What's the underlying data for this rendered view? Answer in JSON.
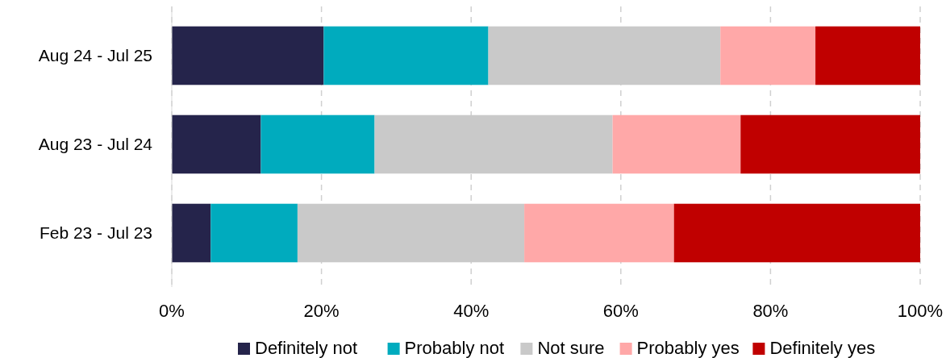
{
  "chart_data": {
    "type": "bar",
    "orientation": "horizontal",
    "stacked": true,
    "categories": [
      "Aug 24 - Jul 25",
      "Aug 23 - Jul 24",
      "Feb 23 - Jul 23"
    ],
    "series": [
      {
        "name": "Definitely not",
        "color": "#25244b",
        "values": [
          20.3,
          11.9,
          5.2
        ]
      },
      {
        "name": "Probably not",
        "color": "#00abbe",
        "values": [
          22.0,
          15.2,
          11.6
        ]
      },
      {
        "name": "Not sure",
        "color": "#c9c9c9",
        "values": [
          31.0,
          31.8,
          30.3
        ]
      },
      {
        "name": "Probably yes",
        "color": "#ffa8a8",
        "values": [
          12.7,
          17.1,
          20.0
        ]
      },
      {
        "name": "Definitely yes",
        "color": "#c00000",
        "values": [
          14.0,
          24.0,
          32.9
        ]
      }
    ],
    "xlim": [
      0,
      100
    ],
    "xticks": [
      {
        "value": 0,
        "label": "0%"
      },
      {
        "value": 20,
        "label": "20%"
      },
      {
        "value": 40,
        "label": "40%"
      },
      {
        "value": 60,
        "label": "60%"
      },
      {
        "value": 80,
        "label": "80%"
      },
      {
        "value": 100,
        "label": "100%"
      }
    ],
    "grid": "x",
    "legend": "bottom"
  }
}
